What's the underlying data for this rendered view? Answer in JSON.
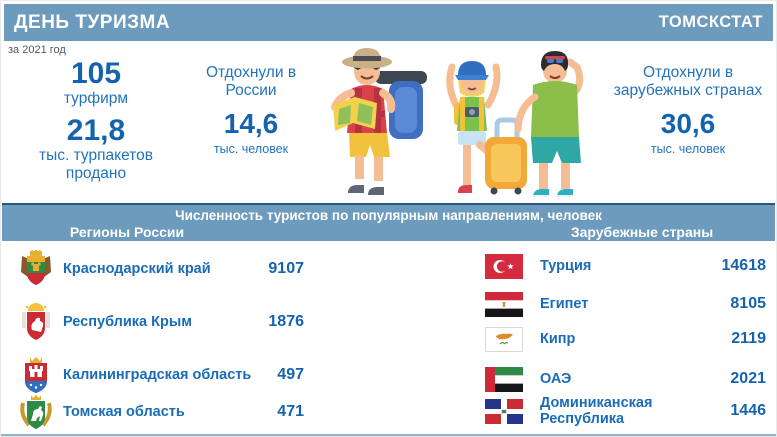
{
  "header": {
    "title": "ДЕНЬ ТУРИЗМА",
    "brand": "ТОМСКСТАТ"
  },
  "period": "за 2021 год",
  "summary": {
    "firms": {
      "value": "105",
      "label": "турфирм"
    },
    "packages": {
      "value": "21,8",
      "label": "тыс. турпакетов продано"
    },
    "domestic": {
      "title": "Отдохнули в России",
      "value": "14,6",
      "unit": "тыс. человек"
    },
    "abroad": {
      "title": "Отдохнули в зарубежных странах",
      "value": "30,6",
      "unit": "тыс. человек"
    }
  },
  "table": {
    "title": "Численность туристов по популярным направлениям, человек",
    "left": {
      "header": "Регионы России",
      "rows": [
        {
          "label": "Краснодарский край",
          "value": "9107",
          "icon": "krasnodar-crest"
        },
        {
          "label": "Республика Крым",
          "value": "1876",
          "icon": "crimea-crest"
        },
        {
          "label": "Калининградская область",
          "value": "497",
          "icon": "kaliningrad-crest"
        },
        {
          "label": "Томская область",
          "value": "471",
          "icon": "tomsk-crest"
        }
      ]
    },
    "right": {
      "header": "Зарубежные страны",
      "rows": [
        {
          "label": "Турция",
          "value": "14618",
          "icon": "turkey-flag"
        },
        {
          "label": "Египет",
          "value": "8105",
          "icon": "egypt-flag"
        },
        {
          "label": "Кипр",
          "value": "2119",
          "icon": "cyprus-flag"
        },
        {
          "label": "ОАЭ",
          "value": "2021",
          "icon": "uae-flag"
        },
        {
          "label": "Доминиканская Республика",
          "value": "1446",
          "icon": "dominican-republic-flag"
        }
      ]
    }
  },
  "colors": {
    "band_blue": "#6d9bbd",
    "band_border": "#2b567e",
    "accent_blue": "#1a6cb8",
    "number_blue": "#1563ae",
    "period_gray": "#4e5a66"
  },
  "chart_data": {
    "type": "table",
    "title": "Численность туристов по популярным направлениям, человек",
    "series": [
      {
        "name": "Регионы России",
        "categories": [
          "Краснодарский край",
          "Республика Крым",
          "Калининградская область",
          "Томская область"
        ],
        "values": [
          9107,
          1876,
          497,
          471
        ]
      },
      {
        "name": "Зарубежные страны",
        "categories": [
          "Турция",
          "Египет",
          "Кипр",
          "ОАЭ",
          "Доминиканская Республика"
        ],
        "values": [
          14618,
          8105,
          2119,
          2021,
          1446
        ]
      }
    ],
    "summary_stats": {
      "period": "2021",
      "turfirm_count": 105,
      "tour_packages_sold_thousand": 21.8,
      "rested_in_russia_thousand_people": 14.6,
      "rested_abroad_thousand_people": 30.6
    }
  }
}
